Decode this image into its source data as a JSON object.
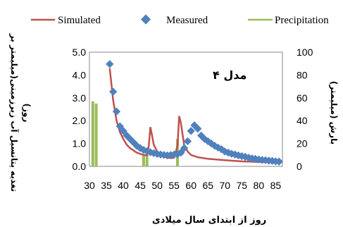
{
  "chart_data": {
    "type": "line",
    "annotation": "مدل ۴",
    "xlabel": "روز از ابتدای سال میلادی",
    "ylabel_left_line1": "تغذیه پتانسیل آب زیرزمینی(میلیمتر بر",
    "ylabel_left_line2": "روز)",
    "ylabel_right": "بارش (میلیمتر)",
    "xlim": [
      30,
      87
    ],
    "ylim_left": [
      0,
      5
    ],
    "ylim_right": [
      0,
      100
    ],
    "x_ticks": [
      "30",
      "35",
      "40",
      "45",
      "50",
      "55",
      "60",
      "65",
      "70",
      "75",
      "80",
      "85"
    ],
    "y_left_ticks": [
      "0.0",
      "1.0",
      "2.0",
      "3.0",
      "4.0",
      "5.0"
    ],
    "y_right_ticks": [
      "0",
      "20",
      "40",
      "60",
      "80",
      "100"
    ],
    "legend": [
      "Simulated",
      "Measured",
      "Precipitation"
    ],
    "colors": {
      "simulated": "#c0504d",
      "measured": "#4f81bd",
      "precipitation": "#9bbb59"
    },
    "series": [
      {
        "name": "Simulated",
        "axis": "left",
        "x": [
          36,
          36.5,
          37,
          38,
          39,
          40,
          41,
          42,
          43,
          44,
          45,
          46,
          47,
          47.5,
          48,
          48.5,
          49,
          50,
          51,
          52,
          53,
          54,
          55,
          56,
          56.5,
          57,
          57.5,
          58,
          59,
          60,
          62,
          65,
          70,
          75,
          80,
          86
        ],
        "y": [
          4.3,
          3.6,
          2.9,
          2.0,
          1.5,
          1.2,
          0.95,
          0.8,
          0.7,
          0.6,
          0.55,
          0.5,
          0.48,
          0.85,
          1.72,
          1.35,
          0.95,
          0.65,
          0.5,
          0.42,
          0.38,
          0.36,
          0.38,
          0.9,
          2.2,
          1.9,
          1.4,
          0.9,
          0.65,
          0.5,
          0.4,
          0.33,
          0.27,
          0.22,
          0.19,
          0.17
        ]
      },
      {
        "name": "Measured",
        "axis": "left",
        "x": [
          36,
          37,
          38,
          39,
          40,
          41,
          42,
          43,
          44,
          45,
          46,
          47,
          48,
          49,
          50,
          51,
          52,
          53,
          54,
          55,
          56,
          57,
          58,
          59,
          60,
          61,
          62,
          63,
          64,
          65,
          66,
          67,
          68,
          69,
          70,
          71,
          72,
          73,
          74,
          75,
          76,
          77,
          78,
          79,
          80,
          81,
          82,
          83,
          84,
          85,
          86
        ],
        "y": [
          4.48,
          3.27,
          2.4,
          1.75,
          1.55,
          1.35,
          1.2,
          1.05,
          0.9,
          0.8,
          0.72,
          0.67,
          0.62,
          0.58,
          0.55,
          0.52,
          0.5,
          0.48,
          0.5,
          0.52,
          0.53,
          0.6,
          0.8,
          1.1,
          1.55,
          1.8,
          1.65,
          1.35,
          1.2,
          1.1,
          1.0,
          0.9,
          0.82,
          0.75,
          0.65,
          0.6,
          0.55,
          0.52,
          0.48,
          0.45,
          0.42,
          0.38,
          0.35,
          0.33,
          0.3,
          0.28,
          0.27,
          0.25,
          0.24,
          0.22,
          0.21
        ]
      },
      {
        "name": "Precipitation",
        "axis": "right",
        "x": [
          31,
          32,
          46,
          47,
          56
        ],
        "y": [
          57,
          55,
          10,
          12,
          24
        ]
      }
    ]
  }
}
